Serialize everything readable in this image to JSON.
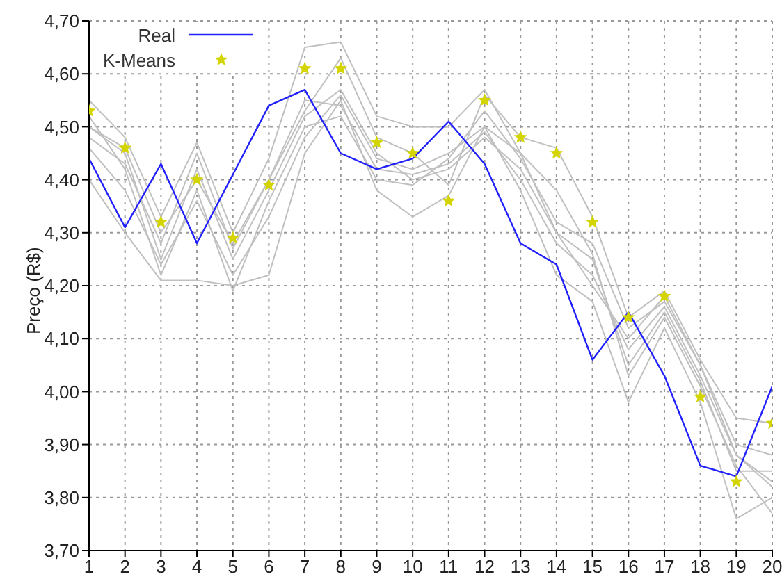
{
  "chart_data": {
    "type": "line",
    "ylabel": "Preço (R$)",
    "x": [
      1,
      2,
      3,
      4,
      5,
      6,
      7,
      8,
      9,
      10,
      11,
      12,
      13,
      14,
      15,
      16,
      17,
      18,
      19,
      20
    ],
    "xlim": [
      1,
      20
    ],
    "xticks": [
      1,
      2,
      3,
      4,
      5,
      6,
      7,
      8,
      9,
      10,
      11,
      12,
      13,
      14,
      15,
      16,
      17,
      18,
      19,
      20
    ],
    "ylim": [
      3.7,
      4.7
    ],
    "yticks": [
      {
        "value": 3.7,
        "label": "3,70"
      },
      {
        "value": 3.8,
        "label": "3,80"
      },
      {
        "value": 3.9,
        "label": "3,90"
      },
      {
        "value": 4.0,
        "label": "4,00"
      },
      {
        "value": 4.1,
        "label": "4,10"
      },
      {
        "value": 4.2,
        "label": "4,20"
      },
      {
        "value": 4.3,
        "label": "4,30"
      },
      {
        "value": 4.4,
        "label": "4,40"
      },
      {
        "value": 4.5,
        "label": "4,50"
      },
      {
        "value": 4.6,
        "label": "4,60"
      },
      {
        "value": 4.7,
        "label": "4,70"
      }
    ],
    "grid": true,
    "legend": "top left",
    "series": [
      {
        "color": "#c0c0c0",
        "values": [
          4.55,
          4.48,
          4.33,
          4.47,
          4.3,
          4.44,
          4.65,
          4.66,
          4.52,
          4.5,
          4.5,
          4.57,
          4.45,
          4.3,
          4.2,
          4.1,
          4.18,
          4.05,
          3.88,
          3.82
        ]
      },
      {
        "color": "#c0c0c0",
        "values": [
          4.4,
          4.3,
          4.21,
          4.21,
          4.2,
          4.22,
          4.45,
          4.55,
          4.38,
          4.33,
          4.37,
          4.5,
          4.38,
          4.22,
          4.17,
          3.98,
          4.12,
          3.98,
          3.76,
          3.8
        ]
      },
      {
        "color": "#c0c0c0",
        "values": [
          4.5,
          4.45,
          4.25,
          4.42,
          4.25,
          4.38,
          4.52,
          4.57,
          4.45,
          4.4,
          4.42,
          4.48,
          4.42,
          4.3,
          4.25,
          4.05,
          4.15,
          4.02,
          3.85,
          3.85
        ]
      },
      {
        "color": "#c0c0c0",
        "values": [
          4.48,
          4.43,
          4.28,
          4.45,
          4.27,
          4.4,
          4.55,
          4.54,
          4.42,
          4.41,
          4.43,
          4.49,
          4.4,
          4.28,
          4.22,
          4.08,
          4.16,
          4.03,
          3.88,
          3.83
        ]
      },
      {
        "color": "#c0c0c0",
        "values": [
          4.52,
          4.42,
          4.22,
          4.38,
          4.19,
          4.36,
          4.5,
          4.52,
          4.4,
          4.39,
          4.44,
          4.53,
          4.44,
          4.32,
          4.28,
          4.12,
          4.17,
          4.05,
          3.9,
          3.88
        ]
      },
      {
        "color": "#c0c0c0",
        "values": [
          4.46,
          4.38,
          4.24,
          4.36,
          4.22,
          4.33,
          4.48,
          4.56,
          4.44,
          4.42,
          4.45,
          4.5,
          4.45,
          4.38,
          4.26,
          4.03,
          4.14,
          4.01,
          3.86,
          3.77
        ]
      },
      {
        "color": "#c0c0c0",
        "values": [
          4.5,
          4.46,
          4.3,
          4.4,
          4.28,
          4.4,
          4.53,
          4.63,
          4.48,
          4.45,
          4.39,
          4.56,
          4.48,
          4.46,
          4.33,
          4.14,
          4.19,
          4.06,
          3.95,
          3.94
        ]
      },
      {
        "name": "Real",
        "color": "#2020ff",
        "marker": "none",
        "values": [
          4.44,
          4.31,
          4.43,
          4.28,
          4.41,
          4.54,
          4.57,
          4.45,
          4.42,
          4.44,
          4.51,
          4.43,
          4.28,
          4.24,
          4.06,
          4.15,
          4.03,
          3.86,
          3.84,
          4.01
        ]
      },
      {
        "name": "K-Means",
        "type": "scatter",
        "marker": "star",
        "color": "#d4d400",
        "values": [
          4.53,
          4.46,
          4.32,
          4.4,
          4.29,
          4.39,
          4.61,
          4.61,
          4.47,
          4.45,
          4.36,
          4.55,
          4.48,
          4.45,
          4.32,
          4.14,
          4.18,
          3.99,
          3.83,
          3.94
        ]
      }
    ]
  }
}
